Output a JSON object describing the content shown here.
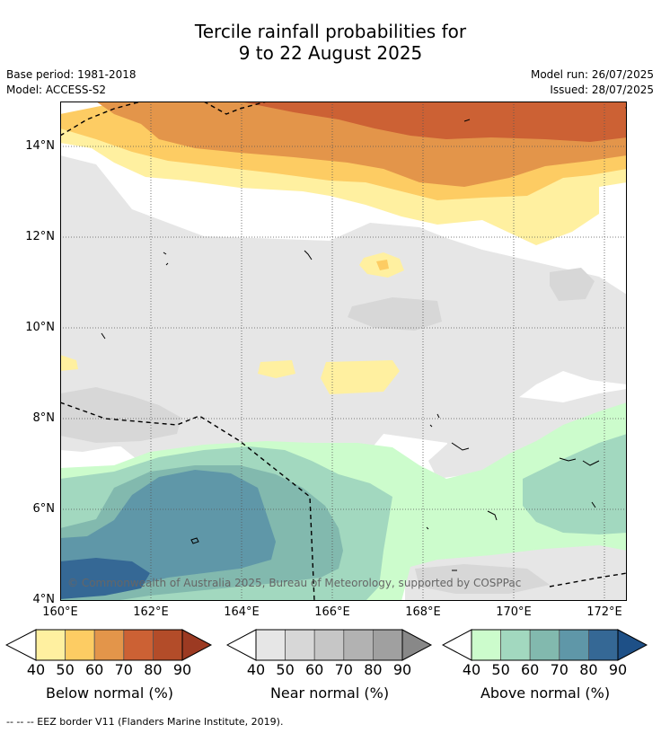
{
  "title": {
    "line1": "Tercile rainfall probabilities for",
    "line2": "9 to 22 August 2025"
  },
  "meta": {
    "base_period": "Base period: 1981-2018",
    "model": "Model: ACCESS-S2",
    "model_run": "Model run: 26/07/2025",
    "issued": "Issued: 28/07/2025"
  },
  "map": {
    "y_ticks": [
      "14°N",
      "12°N",
      "10°N",
      "8°N",
      "6°N",
      "4°N"
    ],
    "x_ticks": [
      "160°E",
      "162°E",
      "164°E",
      "166°E",
      "168°E",
      "170°E",
      "172°E"
    ],
    "copyright": "© Commonwealth of Australia 2025, Bureau of Meteorology, supported by COSPPac"
  },
  "legends": [
    {
      "label": "Below normal (%)",
      "ticks": [
        "40",
        "50",
        "60",
        "70",
        "80",
        "90"
      ],
      "colors": [
        "#fff0a0",
        "#fdcc63",
        "#e3954a",
        "#cc6134",
        "#b34c29",
        "#9c3a22"
      ]
    },
    {
      "label": "Near normal (%)",
      "ticks": [
        "40",
        "50",
        "60",
        "70",
        "80",
        "90"
      ],
      "colors": [
        "#e6e6e6",
        "#d7d7d7",
        "#c6c6c6",
        "#b2b2b2",
        "#a0a0a0",
        "#888888"
      ]
    },
    {
      "label": "Above normal (%)",
      "ticks": [
        "40",
        "50",
        "60",
        "70",
        "80",
        "90"
      ],
      "colors": [
        "#ccfccc",
        "#a2d8bf",
        "#82b9ae",
        "#5f97a8",
        "#356895",
        "#1e5087"
      ]
    }
  ],
  "footer": "--  --  -- EEZ border V11 (Flanders Marine Institute, 2019)."
}
